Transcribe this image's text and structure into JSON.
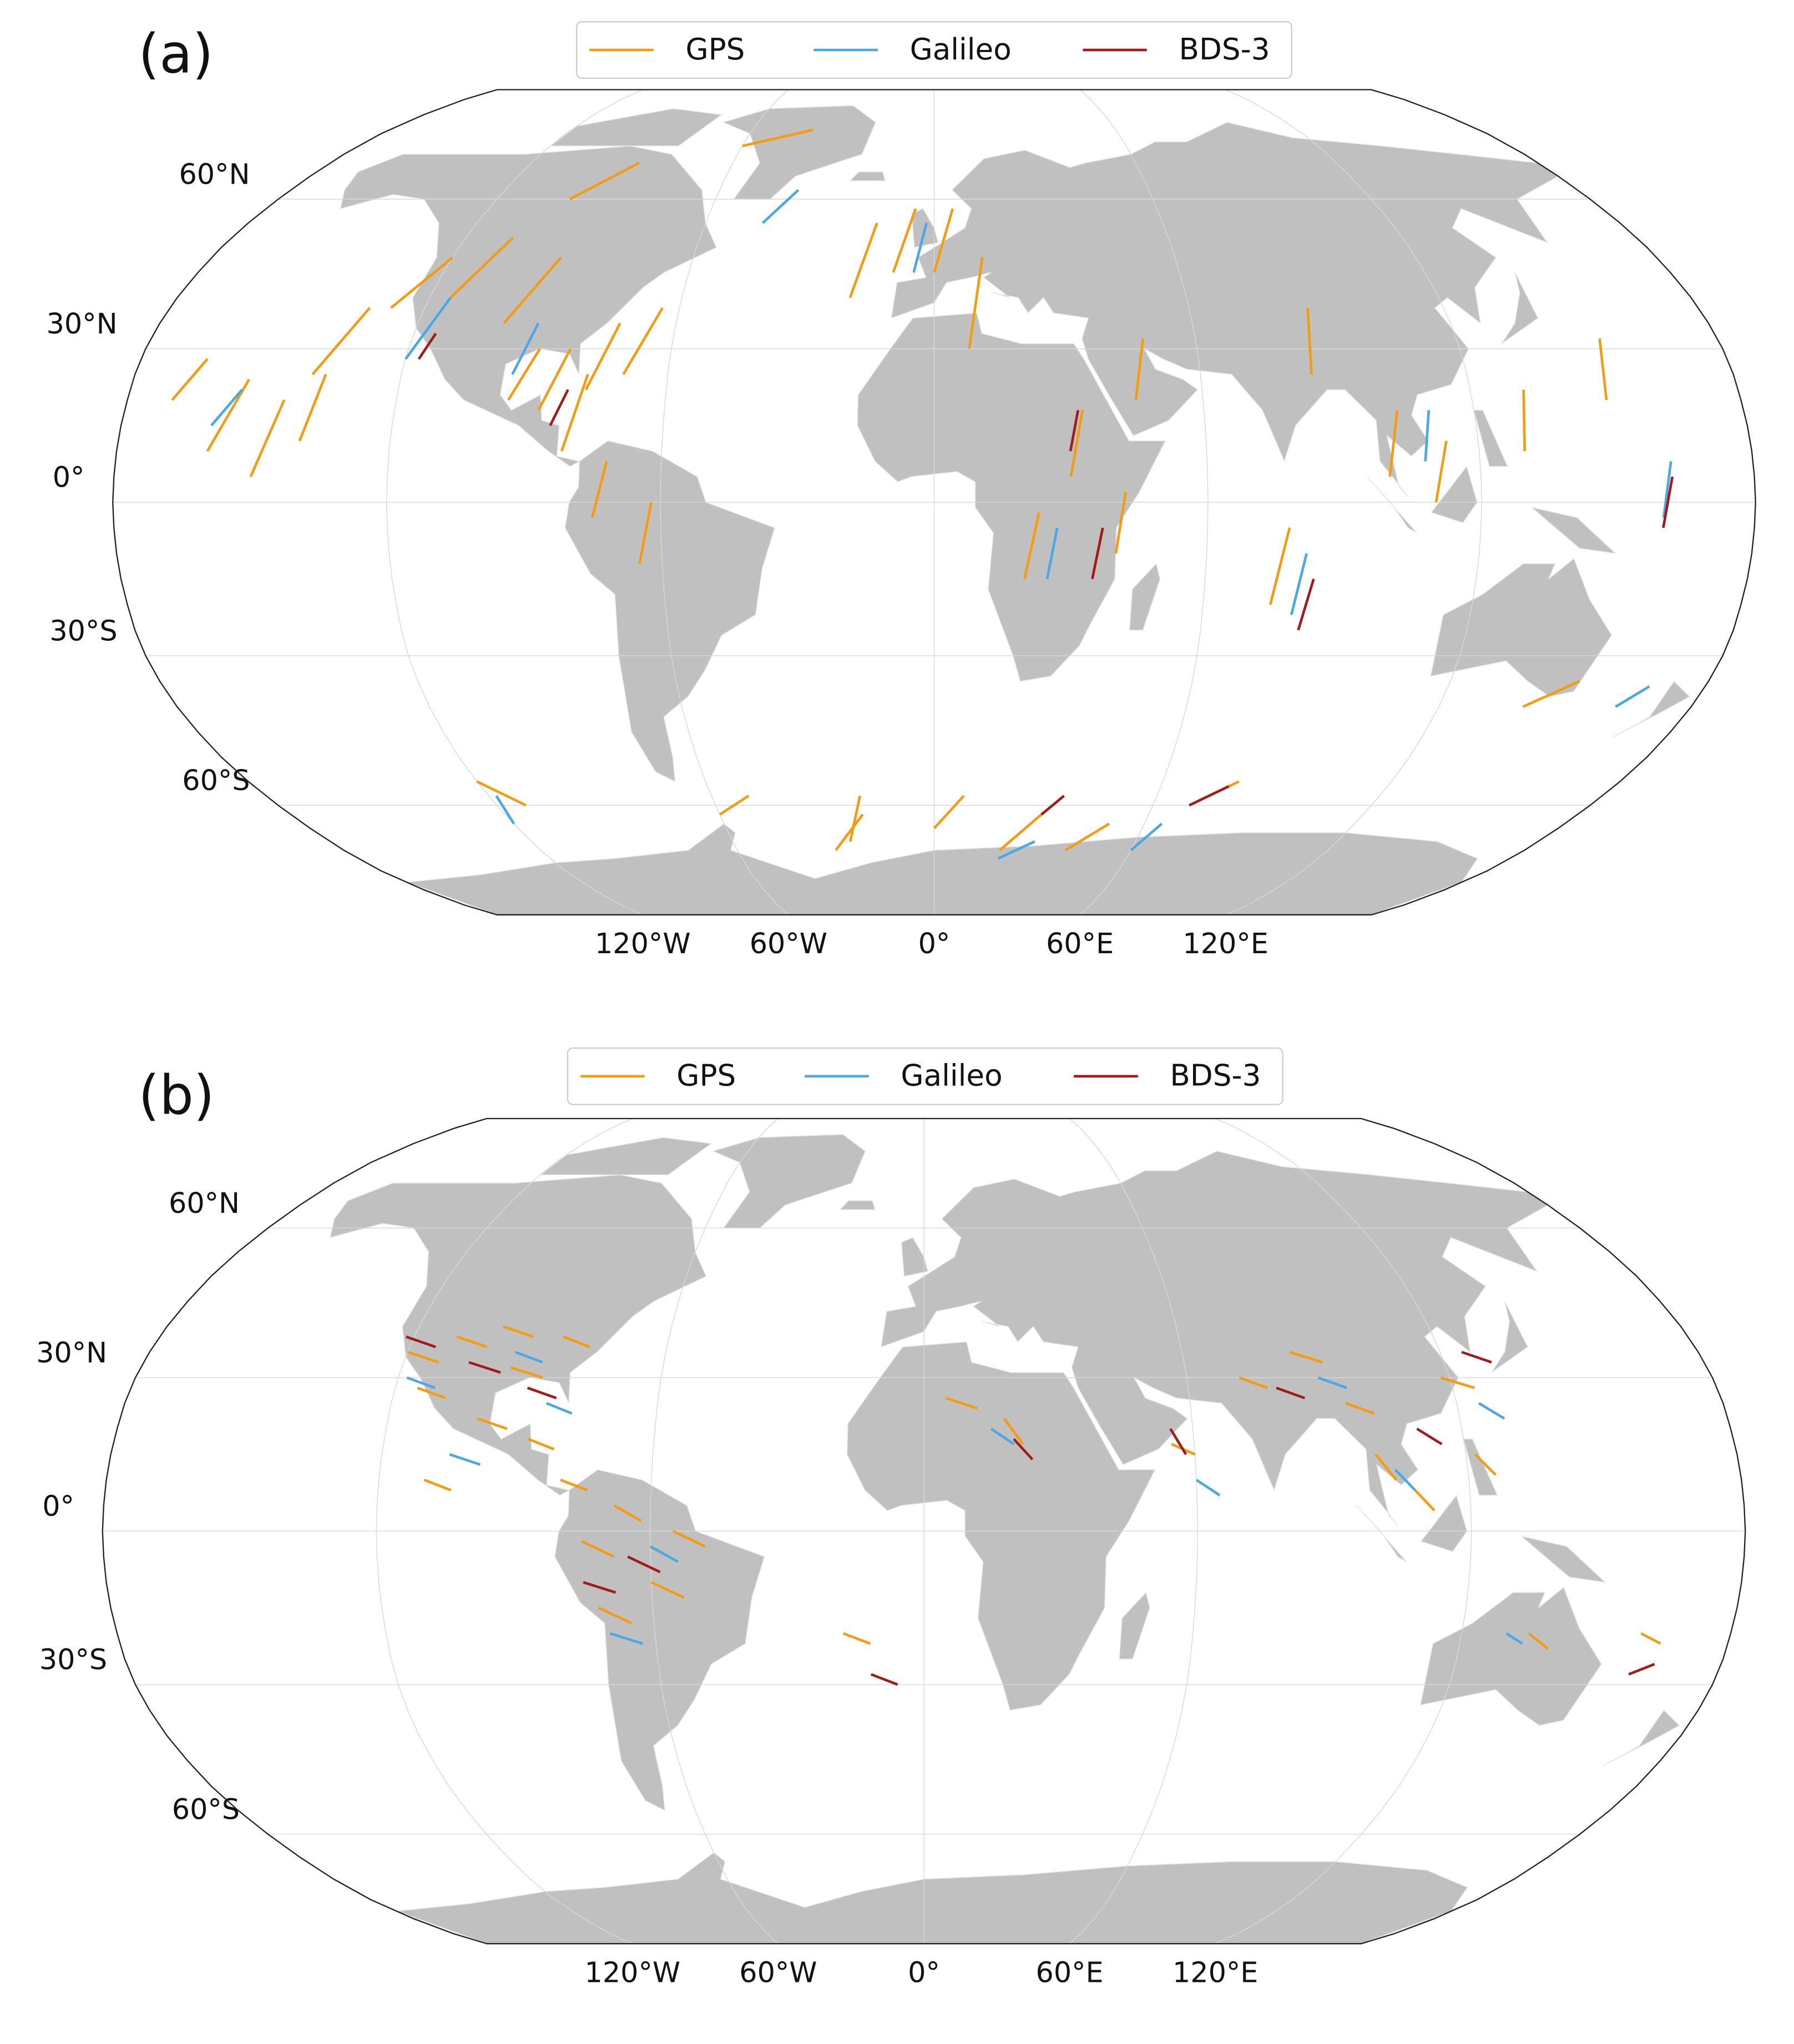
{
  "panels": [
    {
      "label": "(a)",
      "lat_ticks": [
        {
          "value": 60,
          "label": "60°N"
        },
        {
          "value": 30,
          "label": "30°N"
        },
        {
          "value": 0,
          "label": "0°"
        },
        {
          "value": -30,
          "label": "30°S"
        },
        {
          "value": -60,
          "label": "60°S"
        }
      ],
      "lon_ticks": [
        {
          "value": -120,
          "label": "120°W"
        },
        {
          "value": -60,
          "label": "60°W"
        },
        {
          "value": 0,
          "label": "0°"
        },
        {
          "value": 60,
          "label": "60°E"
        },
        {
          "value": 120,
          "label": "120°E"
        }
      ],
      "series": [
        {
          "name": "GPS",
          "color": "#f39c12",
          "segments": [
            [
              -170,
              20,
              -165,
              28
            ],
            [
              -160,
              10,
              -154,
              24
            ],
            [
              -150,
              5,
              -145,
              20
            ],
            [
              -140,
              25,
              -133,
              38
            ],
            [
              -128,
              38,
              -120,
              48
            ],
            [
              -115,
              40,
              -108,
              52
            ],
            [
              -100,
              35,
              -93,
              48
            ],
            [
              -95,
              20,
              -90,
              30
            ],
            [
              -88,
              18,
              -83,
              30
            ],
            [
              -82,
              10,
              -78,
              25
            ],
            [
              -78,
              22,
              -73,
              35
            ],
            [
              -70,
              25,
              -64,
              38
            ],
            [
              -100,
              60,
              -88,
              68
            ],
            [
              -60,
              72,
              -40,
              76
            ],
            [
              -75,
              -3,
              -72,
              8
            ],
            [
              -65,
              -12,
              -62,
              0
            ],
            [
              -20,
              40,
              -15,
              55
            ],
            [
              -10,
              45,
              -5,
              58
            ],
            [
              0,
              45,
              5,
              58
            ],
            [
              8,
              30,
              12,
              48
            ],
            [
              20,
              -15,
              23,
              -2
            ],
            [
              30,
              5,
              33,
              18
            ],
            [
              40,
              -10,
              42,
              2
            ],
            [
              45,
              20,
              48,
              32
            ],
            [
              75,
              -20,
              78,
              -5
            ],
            [
              85,
              25,
              88,
              38
            ],
            [
              100,
              5,
              103,
              18
            ],
            [
              110,
              0,
              113,
              12
            ],
            [
              130,
              10,
              132,
              22
            ],
            [
              150,
              20,
              153,
              32
            ],
            [
              -120,
              -55,
              -112,
              -60
            ],
            [
              -60,
              -62,
              -50,
              -58
            ],
            [
              -30,
              -70,
              -20,
              -62
            ],
            [
              0,
              -65,
              8,
              -58
            ],
            [
              20,
              -70,
              30,
              -62
            ],
            [
              70,
              -60,
              80,
              -55
            ],
            [
              140,
              -40,
              150,
              -35
            ],
            [
              -140,
              12,
              -137,
              25
            ],
            [
              -25,
              -68,
              -20,
              -58
            ],
            [
              40,
              -70,
              50,
              -64
            ]
          ]
        },
        {
          "name": "Galileo",
          "color": "#4aa8e6",
          "segments": [
            [
              -160,
              15,
              -155,
              22
            ],
            [
              -120,
              28,
              -115,
              40
            ],
            [
              -95,
              25,
              -92,
              35
            ],
            [
              -45,
              55,
              -38,
              62
            ],
            [
              -5,
              45,
              -2,
              55
            ],
            [
              25,
              -15,
              27,
              -5
            ],
            [
              80,
              -22,
              82,
              -10
            ],
            [
              108,
              8,
              110,
              18
            ],
            [
              160,
              -3,
              162,
              8
            ],
            [
              -120,
              -64,
              -118,
              -58
            ],
            [
              20,
              -72,
              30,
              -68
            ],
            [
              60,
              -70,
              65,
              -64
            ],
            [
              162,
              -40,
              167,
              -36
            ]
          ]
        },
        {
          "name": "BDS-3",
          "color": "#a31a1a",
          "segments": [
            [
              -117,
              28,
              -115,
              33
            ],
            [
              -85,
              15,
              -82,
              22
            ],
            [
              30,
              10,
              32,
              18
            ],
            [
              35,
              -15,
              37,
              -5
            ],
            [
              82,
              -25,
              84,
              -15
            ],
            [
              160,
              -5,
              162,
              5
            ],
            [
              70,
              -60,
              78,
              -56
            ],
            [
              30,
              -62,
              35,
              -58
            ]
          ]
        }
      ]
    },
    {
      "label": "(b)",
      "lat_ticks": [
        {
          "value": 60,
          "label": "60°N"
        },
        {
          "value": 30,
          "label": "30°N"
        },
        {
          "value": 0,
          "label": "0°"
        },
        {
          "value": -30,
          "label": "30°S"
        },
        {
          "value": -60,
          "label": "60°S"
        }
      ],
      "lon_ticks": [
        {
          "value": -120,
          "label": "120°W"
        },
        {
          "value": -60,
          "label": "60°W"
        },
        {
          "value": 0,
          "label": "0°"
        },
        {
          "value": 60,
          "label": "60°E"
        },
        {
          "value": 120,
          "label": "120°E"
        }
      ],
      "series": [
        {
          "name": "GPS",
          "color": "#f39c12",
          "segments": [
            [
              -120,
              35,
              -112,
              33
            ],
            [
              -110,
              38,
              -102,
              36
            ],
            [
              -100,
              40,
              -92,
              38
            ],
            [
              -95,
              32,
              -87,
              30
            ],
            [
              -85,
              38,
              -78,
              36
            ],
            [
              -115,
              28,
              -108,
              26
            ],
            [
              -100,
              22,
              -93,
              20
            ],
            [
              -88,
              18,
              -82,
              16
            ],
            [
              -75,
              -2,
              -68,
              -5
            ],
            [
              -68,
              5,
              -62,
              2
            ],
            [
              -60,
              -10,
              -53,
              -13
            ],
            [
              -72,
              -15,
              -65,
              -18
            ],
            [
              -55,
              0,
              -48,
              -3
            ],
            [
              -80,
              10,
              -74,
              8
            ],
            [
              -18,
              -20,
              -12,
              -22
            ],
            [
              5,
              26,
              12,
              24
            ],
            [
              18,
              22,
              22,
              17
            ],
            [
              55,
              17,
              60,
              15
            ],
            [
              72,
              30,
              78,
              28
            ],
            [
              85,
              35,
              92,
              33
            ],
            [
              95,
              25,
              101,
              23
            ],
            [
              100,
              15,
              104,
              10
            ],
            [
              108,
              8,
              112,
              4
            ],
            [
              118,
              30,
              125,
              28
            ],
            [
              122,
              15,
              126,
              11
            ],
            [
              135,
              -20,
              140,
              -23
            ],
            [
              160,
              -20,
              165,
              -22
            ],
            [
              -110,
              10,
              -104,
              8
            ]
          ]
        },
        {
          "name": "Galileo",
          "color": "#4aa8e6",
          "segments": [
            [
              -118,
              30,
              -111,
              28
            ],
            [
              -95,
              35,
              -88,
              33
            ],
            [
              -85,
              25,
              -79,
              23
            ],
            [
              -60,
              -3,
              -54,
              -6
            ],
            [
              -70,
              -20,
              -63,
              -22
            ],
            [
              15,
              20,
              20,
              17
            ],
            [
              60,
              10,
              65,
              7
            ],
            [
              90,
              30,
              96,
              28
            ],
            [
              104,
              12,
              108,
              8
            ],
            [
              125,
              25,
              130,
              22
            ],
            [
              130,
              -20,
              134,
              -22
            ],
            [
              -105,
              15,
              -98,
              13
            ]
          ]
        },
        {
          "name": "BDS-3",
          "color": "#a31a1a",
          "segments": [
            [
              -122,
              38,
              -114,
              36
            ],
            [
              -105,
              33,
              -97,
              31
            ],
            [
              -90,
              28,
              -83,
              26
            ],
            [
              -65,
              -5,
              -58,
              -8
            ],
            [
              -75,
              -10,
              -68,
              -12
            ],
            [
              -12,
              -28,
              -6,
              -30
            ],
            [
              20,
              18,
              24,
              14
            ],
            [
              55,
              20,
              58,
              15
            ],
            [
              80,
              28,
              86,
              26
            ],
            [
              110,
              20,
              115,
              17
            ],
            [
              125,
              35,
              131,
              33
            ],
            [
              160,
              -28,
              165,
              -26
            ]
          ]
        }
      ]
    }
  ]
}
